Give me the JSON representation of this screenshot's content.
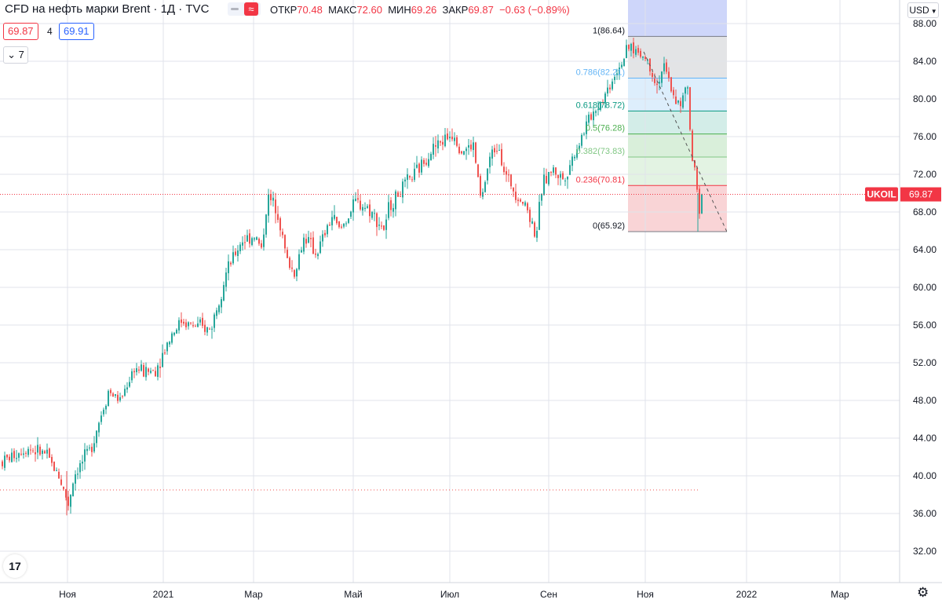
{
  "legend": {
    "title": "CFD на нефть марки Brent · 1Д · TVC",
    "ohlc": [
      {
        "label": "ОТКР",
        "value": "70.48"
      },
      {
        "label": "МАКС",
        "value": "72.60"
      },
      {
        "label": "МИН",
        "value": "69.26"
      },
      {
        "label": "ЗАКР",
        "value": "69.87"
      }
    ],
    "change": "−0.63 (−0.89%)",
    "bid": "69.87",
    "spread": "4",
    "ask": "69.91",
    "collapse": "7",
    "toggle_symbol": "≈"
  },
  "currency": "USD",
  "logo_text": "17",
  "colors": {
    "up": "#26a69a",
    "down": "#ef5350",
    "price_line": "#f23645",
    "text": "#131722",
    "grid": "#e0e3eb"
  },
  "chart_data": {
    "type": "candlestick",
    "symbol": "UKOIL",
    "last_price": 69.87,
    "ylim": [
      30.0,
      90.0
    ],
    "y_ticks": [
      "32.00",
      "36.00",
      "40.00",
      "44.00",
      "48.00",
      "52.00",
      "56.00",
      "60.00",
      "64.00",
      "68.00",
      "72.00",
      "76.00",
      "80.00",
      "84.00",
      "88.00"
    ],
    "x_ticks": [
      "Ноя",
      "2021",
      "Мар",
      "Май",
      "Июл",
      "Сен",
      "Ноя",
      "2022",
      "Мар"
    ],
    "series_path": [
      {
        "t": 0,
        "p": 41.5
      },
      {
        "t": 30,
        "p": 43.0
      },
      {
        "t": 55,
        "p": 42.3
      },
      {
        "t": 72,
        "p": 40.0
      },
      {
        "t": 84,
        "p": 37.0
      },
      {
        "t": 92,
        "p": 40.2
      },
      {
        "t": 112,
        "p": 42.8
      },
      {
        "t": 135,
        "p": 49.0
      },
      {
        "t": 150,
        "p": 48.0
      },
      {
        "t": 168,
        "p": 51.5
      },
      {
        "t": 180,
        "p": 51.0
      },
      {
        "t": 195,
        "p": 51.2
      },
      {
        "t": 215,
        "p": 55.0
      },
      {
        "t": 228,
        "p": 56.5
      },
      {
        "t": 240,
        "p": 56.0
      },
      {
        "t": 265,
        "p": 55.5
      },
      {
        "t": 285,
        "p": 61.5
      },
      {
        "t": 305,
        "p": 65.0
      },
      {
        "t": 322,
        "p": 65.5
      },
      {
        "t": 330,
        "p": 64.0
      },
      {
        "t": 338,
        "p": 69.5
      },
      {
        "t": 350,
        "p": 68.5
      },
      {
        "t": 362,
        "p": 63.0
      },
      {
        "t": 372,
        "p": 61.5
      },
      {
        "t": 385,
        "p": 65.5
      },
      {
        "t": 400,
        "p": 63.5
      },
      {
        "t": 420,
        "p": 67.5
      },
      {
        "t": 430,
        "p": 66.0
      },
      {
        "t": 450,
        "p": 69.0
      },
      {
        "t": 465,
        "p": 68.5
      },
      {
        "t": 488,
        "p": 66.0
      },
      {
        "t": 492,
        "p": 68.5
      },
      {
        "t": 510,
        "p": 70.5
      },
      {
        "t": 530,
        "p": 72.5
      },
      {
        "t": 545,
        "p": 74.5
      },
      {
        "t": 560,
        "p": 75.5
      },
      {
        "t": 575,
        "p": 76.5
      },
      {
        "t": 585,
        "p": 74.5
      },
      {
        "t": 600,
        "p": 75.0
      },
      {
        "t": 610,
        "p": 69.0
      },
      {
        "t": 620,
        "p": 73.5
      },
      {
        "t": 632,
        "p": 75.5
      },
      {
        "t": 640,
        "p": 72.0
      },
      {
        "t": 655,
        "p": 70.0
      },
      {
        "t": 668,
        "p": 68.5
      },
      {
        "t": 680,
        "p": 65.5
      },
      {
        "t": 688,
        "p": 71.0
      },
      {
        "t": 700,
        "p": 72.5
      },
      {
        "t": 715,
        "p": 71.5
      },
      {
        "t": 730,
        "p": 74.5
      },
      {
        "t": 748,
        "p": 78.0
      },
      {
        "t": 768,
        "p": 80.5
      },
      {
        "t": 782,
        "p": 83.0
      },
      {
        "t": 800,
        "p": 85.5
      },
      {
        "t": 810,
        "p": 85.0
      },
      {
        "t": 822,
        "p": 84.0
      },
      {
        "t": 834,
        "p": 81.5
      },
      {
        "t": 842,
        "p": 83.5
      },
      {
        "t": 855,
        "p": 80.5
      },
      {
        "t": 864,
        "p": 79.0
      },
      {
        "t": 872,
        "p": 82.0
      },
      {
        "t": 878,
        "p": 74.0
      },
      {
        "t": 884,
        "p": 71.0
      },
      {
        "t": 888,
        "p": 67.5
      },
      {
        "t": 893,
        "p": 69.87
      }
    ],
    "fibonacci": {
      "high": 86.64,
      "low": 65.92,
      "levels": [
        {
          "ratio": 1.0,
          "label": "1(86.64)",
          "price": 86.64,
          "line": "#787b86",
          "fill": "#e3e4e6"
        },
        {
          "ratio": 0.786,
          "label": "0.786(82.21)",
          "price": 82.21,
          "line": "#64b5f6",
          "fill": "#ddeefc"
        },
        {
          "ratio": 0.618,
          "label": "0.618(78.72)",
          "price": 78.72,
          "line": "#089981",
          "fill": "#d3ede8"
        },
        {
          "ratio": 0.5,
          "label": "0.5(76.28)",
          "price": 76.28,
          "line": "#4caf50",
          "fill": "#d9efda"
        },
        {
          "ratio": 0.382,
          "label": "0.382(73.83)",
          "price": 73.83,
          "line": "#81c784",
          "fill": "#e3f3e3"
        },
        {
          "ratio": 0.236,
          "label": "0.236(70.81)",
          "price": 70.81,
          "line": "#f23645",
          "fill": "#f9d4d6"
        },
        {
          "ratio": 0,
          "label": "0(65.92)",
          "price": 65.92,
          "line": "#787b86",
          "fill": null
        }
      ],
      "extension_fill": "#c5cff9"
    },
    "horizontal_line_level": 38.5
  }
}
